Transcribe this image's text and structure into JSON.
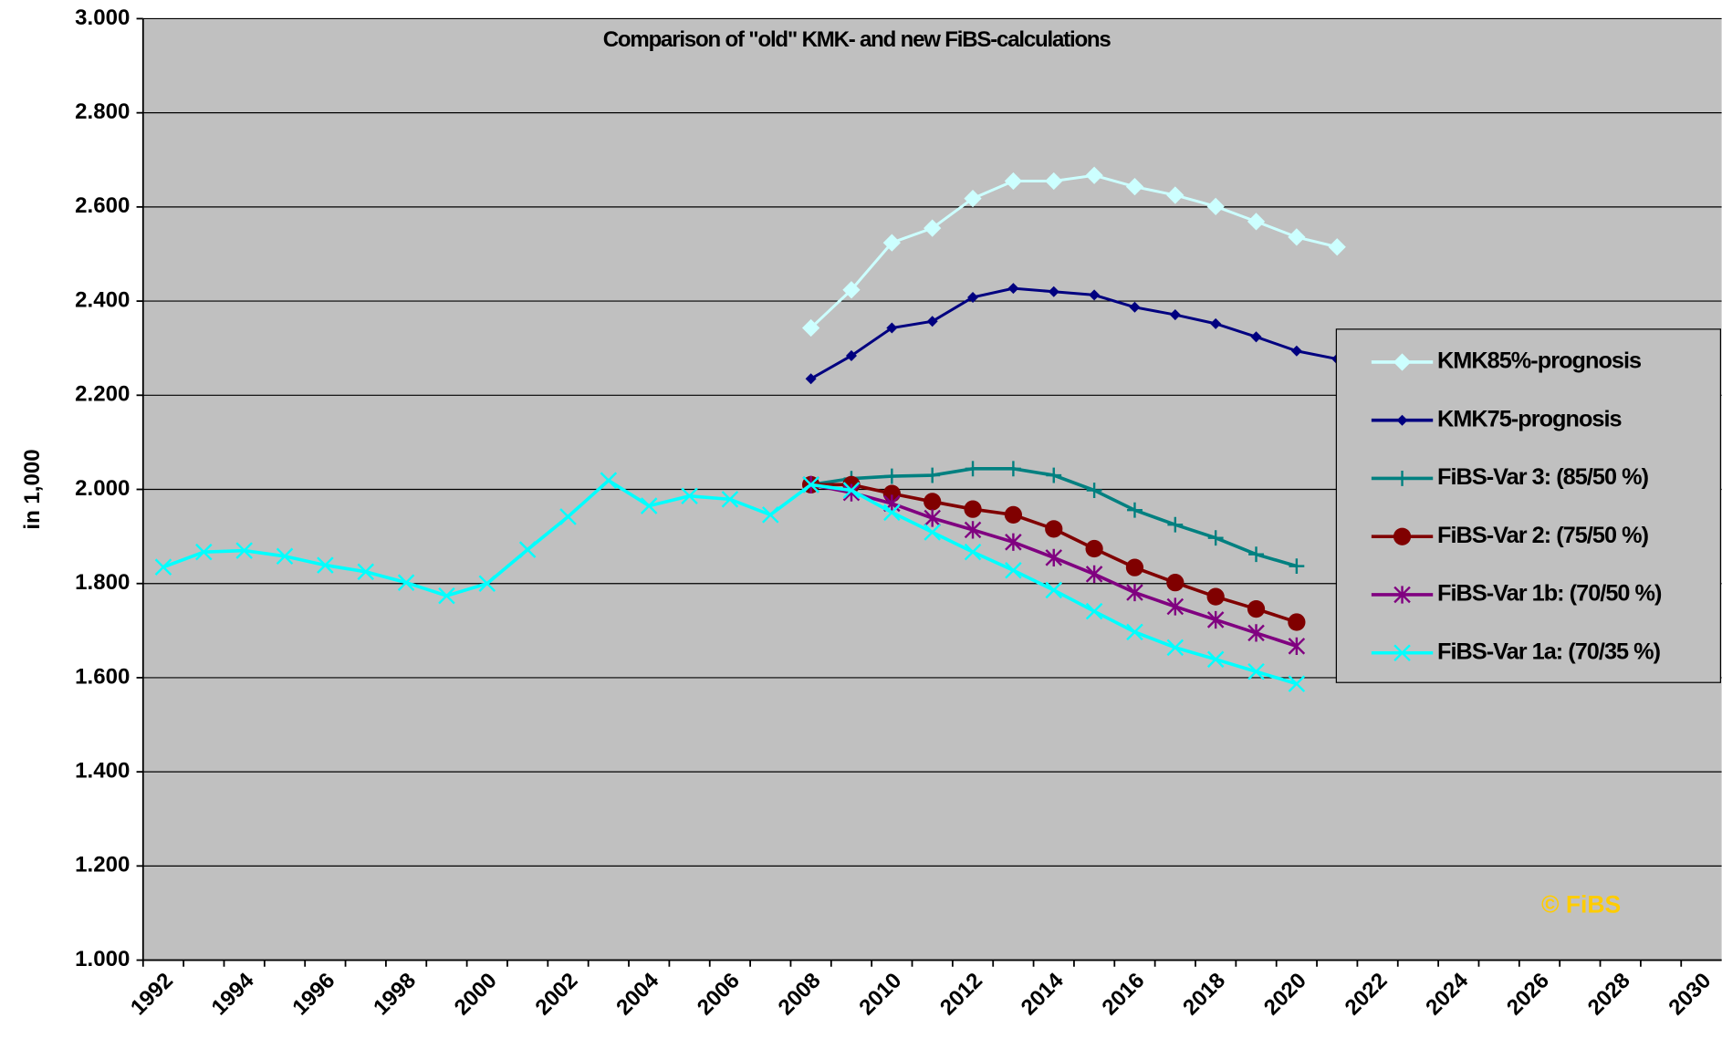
{
  "chart_data": {
    "type": "line",
    "title": "Comparison of \"old\" KMK- and new FiBS-calculations",
    "y_label": "in 1,000",
    "annotation": "© FiBS",
    "background": "#c0c0c0",
    "grid": true,
    "legend": "right",
    "categories": [
      "1992",
      null,
      "1994",
      null,
      "1996",
      null,
      "1998",
      null,
      "2000",
      null,
      "2002",
      null,
      "2004",
      null,
      "2006",
      null,
      "2008",
      null,
      "2010",
      null,
      "2012",
      null,
      "2014",
      null,
      "2016",
      null,
      "2018",
      null,
      "2020",
      null,
      "2022",
      null,
      "2024",
      null,
      "2026",
      null,
      "2028",
      null,
      "2030"
    ],
    "ylim": [
      1000,
      3000
    ],
    "yticks": [
      {
        "value": 1000,
        "label": "1.000"
      },
      {
        "value": 1200,
        "label": "1.200"
      },
      {
        "value": 1400,
        "label": "1.400"
      },
      {
        "value": 1600,
        "label": "1.600"
      },
      {
        "value": 1800,
        "label": "1.800"
      },
      {
        "value": 2000,
        "label": "2.000"
      },
      {
        "value": 2200,
        "label": "2.200"
      },
      {
        "value": 2400,
        "label": "2.400"
      },
      {
        "value": 2600,
        "label": "2.600"
      },
      {
        "value": 2800,
        "label": "2.800"
      },
      {
        "value": 3000,
        "label": "3.000"
      }
    ],
    "series": [
      {
        "name": "KMK85%-prognosis",
        "color": "#ccffff",
        "marker": "diamond-large",
        "values": [
          null,
          null,
          null,
          null,
          null,
          null,
          null,
          null,
          null,
          null,
          null,
          null,
          null,
          null,
          null,
          null,
          2343,
          2424,
          2524,
          2555,
          2618,
          2655,
          2655,
          2667,
          2643,
          2625,
          2601,
          2569,
          2536,
          2515,
          null,
          null,
          null,
          null,
          null,
          null,
          null,
          null,
          null
        ]
      },
      {
        "name": "KMK75-prognosis",
        "color": "#000080",
        "marker": "diamond-small",
        "values": [
          null,
          null,
          null,
          null,
          null,
          null,
          null,
          null,
          null,
          null,
          null,
          null,
          null,
          null,
          null,
          null,
          2235,
          2284,
          2343,
          2357,
          2408,
          2427,
          2420,
          2413,
          2387,
          2371,
          2352,
          2324,
          2294,
          2277,
          null,
          null,
          null,
          null,
          null,
          null,
          null,
          null,
          null
        ]
      },
      {
        "name": "FiBS-Var 3: (85/50 %)",
        "color": "#008080",
        "marker": "plus",
        "values": [
          null,
          null,
          null,
          null,
          null,
          null,
          null,
          null,
          null,
          null,
          null,
          null,
          null,
          null,
          null,
          null,
          2010,
          2023,
          2028,
          2030,
          2044,
          2044,
          2030,
          1998,
          1956,
          1925,
          1897,
          1862,
          1837,
          null,
          null,
          null,
          null,
          null,
          null,
          null,
          null,
          null,
          null
        ]
      },
      {
        "name": "FiBS-Var 2: (75/50 %)",
        "color": "#800000",
        "marker": "circle",
        "values": [
          null,
          null,
          null,
          null,
          null,
          null,
          null,
          null,
          null,
          null,
          null,
          null,
          null,
          null,
          null,
          null,
          2010,
          2010,
          1991,
          1974,
          1958,
          1946,
          1916,
          1874,
          1834,
          1802,
          1772,
          1746,
          1718,
          null,
          null,
          null,
          null,
          null,
          null,
          null,
          null,
          null,
          null
        ]
      },
      {
        "name": "FiBS-Var 1b: (70/50 %)",
        "color": "#800080",
        "marker": "star",
        "values": [
          null,
          null,
          null,
          null,
          null,
          null,
          null,
          null,
          null,
          null,
          null,
          null,
          null,
          null,
          null,
          null,
          2010,
          1993,
          1970,
          1939,
          1914,
          1888,
          1855,
          1820,
          1781,
          1751,
          1723,
          1695,
          1667,
          null,
          null,
          null,
          null,
          null,
          null,
          null,
          null,
          null,
          null
        ]
      },
      {
        "name": "FiBS-Var 1a: (70/35 %)",
        "color": "#00ffff",
        "marker": "x",
        "values": [
          1835,
          1867,
          1870,
          1858,
          1839,
          1825,
          1802,
          1774,
          1800,
          1872,
          1942,
          2019,
          1965,
          1986,
          1979,
          1946,
          2010,
          1998,
          1951,
          1909,
          1867,
          1828,
          1786,
          1741,
          1697,
          1664,
          1639,
          1613,
          1587,
          null,
          null,
          null,
          null,
          null,
          null,
          null,
          null,
          null,
          null
        ]
      }
    ]
  }
}
